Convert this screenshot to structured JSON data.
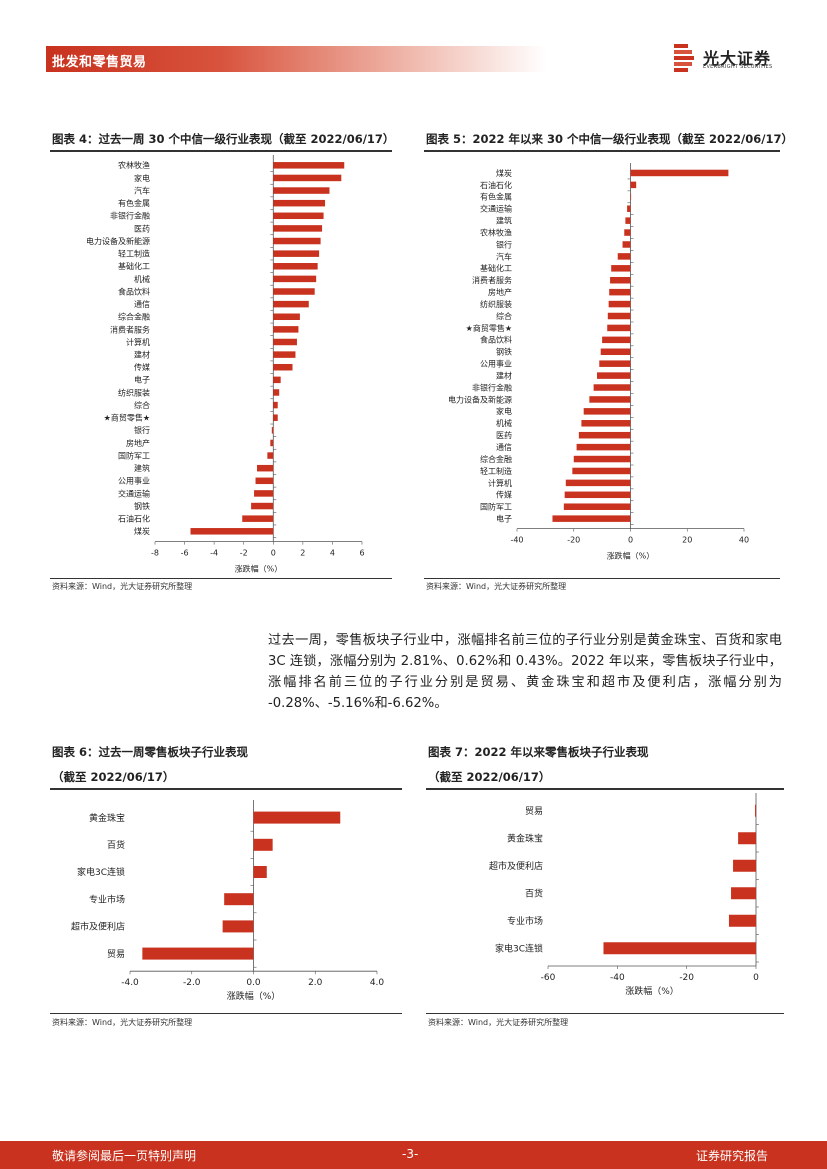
{
  "header": {
    "section": "批发和零售贸易",
    "brand_cn": "光大证券",
    "brand_en": "EVERBRIGHT SECURITIES"
  },
  "figures": {
    "fig4": {
      "title": "图表 4：过去一周 30 个中信一级行业表现（截至 2022/06/17）",
      "source": "资料来源：Wind，光大证券研究所整理"
    },
    "fig5": {
      "title": "图表 5：2022 年以来 30 个中信一级行业表现（截至 2022/06/17）",
      "source": "资料来源：Wind，光大证券研究所整理"
    },
    "fig6": {
      "title": "图表 6：过去一周零售板块子行业表现",
      "subtitle": "（截至 2022/06/17）",
      "source": "资料来源：Wind，光大证券研究所整理"
    },
    "fig7": {
      "title": "图表 7：2022 年以来零售板块子行业表现",
      "subtitle": "（截至 2022/06/17）",
      "source": "资料来源：Wind，光大证券研究所整理"
    }
  },
  "paragraph": "过去一周，零售板块子行业中，涨幅排名前三位的子行业分别是黄金珠宝、百货和家电 3C 连锁，涨幅分别为 2.81%、0.62%和 0.43%。2022 年以来，零售板块子行业中，涨幅排名前三位的子行业分别是贸易、黄金珠宝和超市及便利店，涨幅分别为 -0.28%、-5.16%和-6.62%。",
  "footer": {
    "left": "敬请参阅最后一页特别声明",
    "page": "-3-",
    "right": "证券研究报告"
  },
  "colors": {
    "bar": "#c8321e",
    "accent": "#c8321e"
  },
  "chart_data": [
    {
      "id": "fig4",
      "type": "bar",
      "orientation": "horizontal",
      "xlabel": "涨跌幅（%）",
      "xlim": [
        -8,
        6
      ],
      "xticks": [
        "-8",
        "-6",
        "-4",
        "-2",
        "0",
        "2",
        "4",
        "6"
      ],
      "categories": [
        "农林牧渔",
        "家电",
        "汽车",
        "有色金属",
        "非银行金融",
        "医药",
        "电力设备及新能源",
        "轻工制造",
        "基础化工",
        "机械",
        "食品饮料",
        "通信",
        "综合金融",
        "消费者服务",
        "计算机",
        "建材",
        "传媒",
        "电子",
        "纺织服装",
        "综合",
        "★商贸零售★",
        "银行",
        "房地产",
        "国防军工",
        "建筑",
        "公用事业",
        "交通运输",
        "钢铁",
        "石油石化",
        "煤炭"
      ],
      "values": [
        4.8,
        4.6,
        3.8,
        3.5,
        3.4,
        3.3,
        3.2,
        3.1,
        3.0,
        2.9,
        2.8,
        2.4,
        1.8,
        1.7,
        1.6,
        1.5,
        1.3,
        0.5,
        0.4,
        0.3,
        0.3,
        -0.1,
        -0.2,
        -0.4,
        -1.1,
        -1.2,
        -1.3,
        -1.5,
        -2.1,
        -5.6
      ]
    },
    {
      "id": "fig5",
      "type": "bar",
      "orientation": "horizontal",
      "xlabel": "涨跌幅（%）",
      "xlim": [
        -40,
        40
      ],
      "xticks": [
        "-40",
        "-20",
        "0",
        "20",
        "40"
      ],
      "categories": [
        "煤炭",
        "石油石化",
        "有色金属",
        "交通运输",
        "建筑",
        "农林牧渔",
        "银行",
        "汽车",
        "基础化工",
        "消费者服务",
        "房地产",
        "纺织服装",
        "综合",
        "★商贸零售★",
        "食品饮料",
        "钢铁",
        "公用事业",
        "建材",
        "非银行金融",
        "电力设备及新能源",
        "家电",
        "机械",
        "医药",
        "通信",
        "综合金融",
        "轻工制造",
        "计算机",
        "传媒",
        "国防军工",
        "电子"
      ],
      "values": [
        34.5,
        2.0,
        0.2,
        -1.2,
        -1.8,
        -2.2,
        -2.8,
        -4.5,
        -6.8,
        -7.2,
        -7.5,
        -7.7,
        -8.0,
        -8.2,
        -10.0,
        -10.5,
        -11.0,
        -11.8,
        -13.0,
        -14.5,
        -16.5,
        -17.3,
        -18.2,
        -19.0,
        -20.0,
        -20.5,
        -22.8,
        -23.2,
        -23.5,
        -27.5
      ]
    },
    {
      "id": "fig6",
      "type": "bar",
      "orientation": "horizontal",
      "xlabel": "涨跌幅（%）",
      "xlim": [
        -4,
        4
      ],
      "xticks": [
        "-4.0",
        "-2.0",
        "0.0",
        "2.0",
        "4.0"
      ],
      "categories": [
        "黄金珠宝",
        "百货",
        "家电3C连锁",
        "专业市场",
        "超市及便利店",
        "贸易"
      ],
      "values": [
        2.81,
        0.62,
        0.43,
        -0.95,
        -1.0,
        -3.6
      ]
    },
    {
      "id": "fig7",
      "type": "bar",
      "orientation": "horizontal",
      "xlabel": "涨跌幅（%）",
      "xlim": [
        -60,
        0
      ],
      "xticks": [
        "-60",
        "-40",
        "-20",
        "0"
      ],
      "categories": [
        "贸易",
        "黄金珠宝",
        "超市及便利店",
        "百货",
        "专业市场",
        "家电3C连锁"
      ],
      "values": [
        -0.28,
        -5.16,
        -6.62,
        -7.2,
        -7.8,
        -44.0
      ]
    }
  ]
}
